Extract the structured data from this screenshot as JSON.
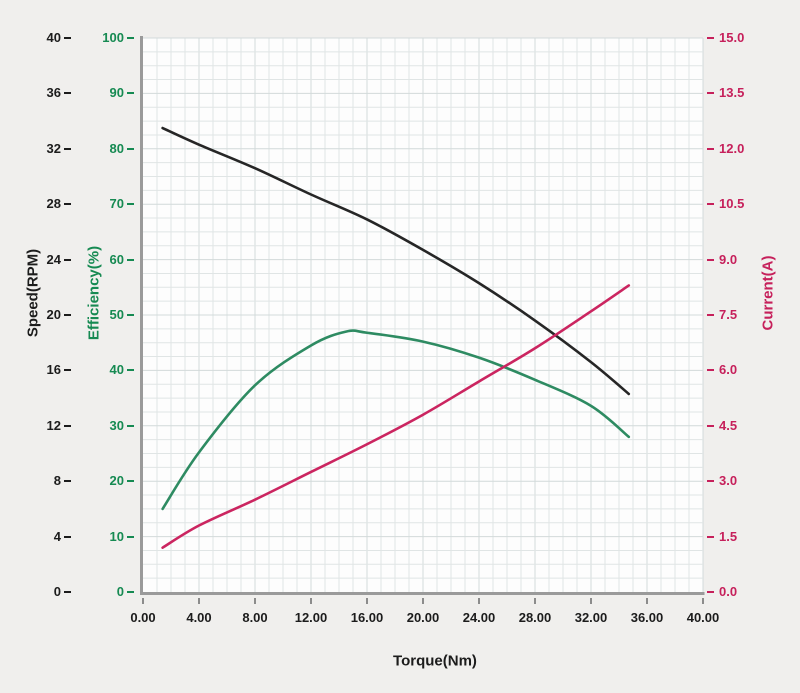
{
  "figure": {
    "background": "#f0efed",
    "plot_background": "#fdfdfd",
    "grid_color": "#e0e5e5",
    "grid_major_color": "#d2dada",
    "axis_line_color": "#9a9a9a",
    "x_tick_mark_color": "#6b6b6b"
  },
  "chart_data": {
    "type": "line",
    "title": "",
    "xlabel": "Torque(Nm)",
    "xlim": [
      0,
      40
    ],
    "grid": true,
    "legend": "none",
    "x_tick_labels": [
      "0.00",
      "4.00",
      "8.00",
      "12.00",
      "16.00",
      "20.00",
      "24.00",
      "28.00",
      "32.00",
      "36.00",
      "40.00"
    ],
    "axes": {
      "speed": {
        "label": "Speed(RPM)",
        "color": "#1c1c1c",
        "range": [
          0,
          40
        ],
        "tick_labels": [
          "0",
          "4",
          "8",
          "12",
          "16",
          "20",
          "24",
          "28",
          "32",
          "36",
          "40"
        ]
      },
      "efficiency": {
        "label": "Efficiency(%)",
        "color": "#168a52",
        "range": [
          0,
          100
        ],
        "tick_labels": [
          "0",
          "10",
          "20",
          "30",
          "40",
          "50",
          "60",
          "70",
          "80",
          "90",
          "100"
        ]
      },
      "current": {
        "label": "Current(A)",
        "color": "#c6205b",
        "range": [
          0,
          15
        ],
        "tick_labels": [
          "0.0",
          "1.5",
          "3.0",
          "4.5",
          "6.0",
          "7.5",
          "9.0",
          "10.5",
          "12.0",
          "13.5",
          "15.0"
        ]
      }
    },
    "series": [
      {
        "name": "speed",
        "axis": "speed",
        "color": "#262626",
        "x": [
          1.4,
          4,
          8,
          12,
          16,
          20,
          24,
          28,
          32,
          34.7
        ],
        "y": [
          33.5,
          32.3,
          30.6,
          28.7,
          26.9,
          24.7,
          22.3,
          19.6,
          16.6,
          14.3
        ]
      },
      {
        "name": "efficiency",
        "axis": "efficiency",
        "color": "#2e8b62",
        "x": [
          1.4,
          4,
          8,
          12,
          14.5,
          16,
          20,
          24,
          28,
          32,
          34.7
        ],
        "y": [
          15.0,
          25.2,
          37.3,
          44.5,
          47.0,
          46.8,
          45.2,
          42.3,
          38.3,
          33.6,
          28.0
        ]
      },
      {
        "name": "current",
        "axis": "current",
        "color": "#cb2560",
        "x": [
          1.4,
          4,
          8,
          12,
          16,
          20,
          24,
          28,
          32,
          34.7
        ],
        "y": [
          1.2,
          1.8,
          2.5,
          3.25,
          4.0,
          4.8,
          5.7,
          6.6,
          7.6,
          8.3
        ]
      }
    ]
  }
}
